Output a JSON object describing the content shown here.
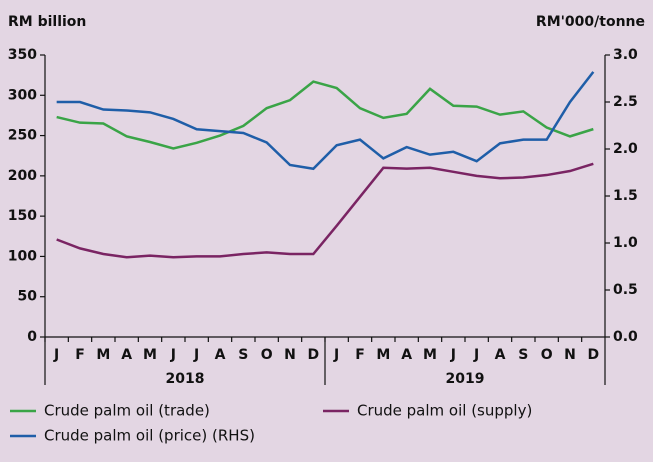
{
  "chart_data": {
    "type": "line",
    "y_label": "RM billion",
    "y2_label": "RM'000/tonne",
    "categories": [
      "J",
      "F",
      "M",
      "A",
      "M",
      "J",
      "J",
      "A",
      "S",
      "O",
      "N",
      "D",
      "J",
      "F",
      "M",
      "A",
      "M",
      "J",
      "J",
      "A",
      "S",
      "O",
      "N",
      "D"
    ],
    "years": [
      "2018",
      "2019"
    ],
    "series": [
      {
        "name": "Crude palm oil (trade)",
        "color": "#3aa447",
        "values": [
          273,
          266,
          265,
          249,
          242,
          234,
          241,
          250,
          262,
          284,
          294,
          317,
          309,
          284,
          272,
          277,
          308,
          287,
          286,
          276,
          280,
          260,
          249,
          258
        ]
      },
      {
        "name": "Crude palm oil (supply)",
        "color": "#7a2463",
        "values": [
          121,
          110,
          103,
          99,
          101,
          99,
          100,
          100,
          103,
          105,
          103,
          103,
          138,
          174,
          210,
          209,
          210,
          205,
          200,
          197,
          198,
          201,
          206,
          215
        ]
      },
      {
        "name": "Crude palm oil (price) (RHS)",
        "color": "#1f5ea8",
        "axis": "y2",
        "values": [
          2.5,
          2.5,
          2.42,
          2.41,
          2.39,
          2.32,
          2.21,
          2.19,
          2.17,
          2.07,
          1.83,
          1.79,
          2.04,
          2.1,
          1.9,
          2.02,
          1.94,
          1.97,
          1.87,
          2.06,
          2.1,
          2.1,
          2.5,
          2.82
        ]
      }
    ],
    "ylim": [
      0,
      350
    ],
    "yticks": [
      0,
      50,
      100,
      150,
      200,
      250,
      300,
      350
    ],
    "y2lim": [
      0,
      3
    ],
    "y2ticks": [
      {
        "value": 0,
        "label": "0.0"
      },
      0.5,
      {
        "value": 1,
        "label": "1.0"
      },
      1.5,
      {
        "value": 2,
        "label": "2.0"
      },
      2.5,
      {
        "value": 3,
        "label": "3.0"
      }
    ]
  }
}
